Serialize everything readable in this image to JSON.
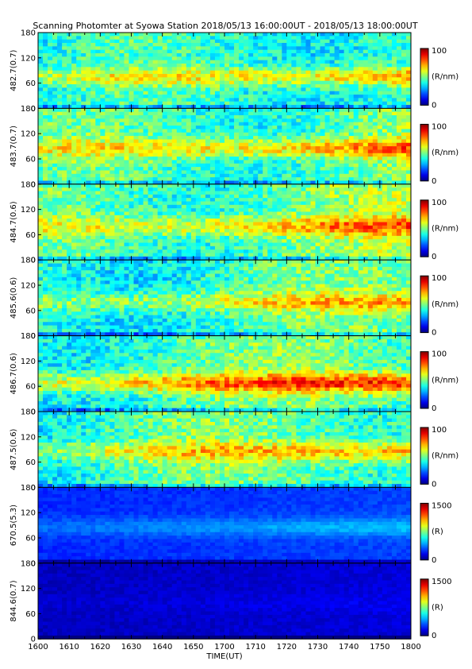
{
  "title": "Scanning Photomter at Syowa Station  2018/05/13 16:00:00UT - 2018/05/13 18:00:00UT",
  "chart_data": {
    "type": "heatmap",
    "title": "Scanning Photomter at Syowa Station  2018/05/13 16:00:00UT - 2018/05/13 18:00:00UT",
    "xlabel": "TIME(UT)",
    "x_ticks": [
      "1600",
      "1610",
      "1620",
      "1630",
      "1640",
      "1650",
      "1700",
      "1710",
      "1720",
      "1730",
      "1740",
      "1750",
      "1800"
    ],
    "y_ticks": [
      "0",
      "60",
      "120",
      "180"
    ],
    "ylim": [
      0,
      180
    ],
    "panels": [
      {
        "ylabel": "482.7(0.7)",
        "cbar_unit": "(R/nm)",
        "cbar_min": "0",
        "cbar_max": "100",
        "level": 0.38,
        "band_center": 75,
        "band_strength": 0.22,
        "scale": "nm"
      },
      {
        "ylabel": "483.7(0.7)",
        "cbar_unit": "(R/nm)",
        "cbar_min": "0",
        "cbar_max": "100",
        "level": 0.42,
        "band_center": 85,
        "band_strength": 0.22,
        "scale": "nm"
      },
      {
        "ylabel": "484.7(0.6)",
        "cbar_unit": "(R/nm)",
        "cbar_min": "0",
        "cbar_max": "100",
        "level": 0.44,
        "band_center": 80,
        "band_strength": 0.2,
        "scale": "nm"
      },
      {
        "ylabel": "485.6(0.6)",
        "cbar_unit": "(R/nm)",
        "cbar_min": "0",
        "cbar_max": "100",
        "level": 0.4,
        "band_center": 80,
        "band_strength": 0.18,
        "scale": "nm"
      },
      {
        "ylabel": "486.7(0.6)",
        "cbar_unit": "(R/nm)",
        "cbar_min": "0",
        "cbar_max": "100",
        "level": 0.42,
        "band_center": 68,
        "band_strength": 0.3,
        "scale": "nm"
      },
      {
        "ylabel": "487.5(0.6)",
        "cbar_unit": "(R/nm)",
        "cbar_min": "0",
        "cbar_max": "100",
        "level": 0.42,
        "band_center": 85,
        "band_strength": 0.2,
        "scale": "nm"
      },
      {
        "ylabel": "670.5(5.3)",
        "cbar_unit": "(R)",
        "cbar_min": "0",
        "cbar_max": "1500",
        "level": 0.16,
        "band_center": 85,
        "band_strength": 0.1,
        "scale": "r"
      },
      {
        "ylabel": "844.6(0.7)",
        "cbar_unit": "(R)",
        "cbar_min": "0",
        "cbar_max": "1500",
        "level": 0.06,
        "band_center": 85,
        "band_strength": 0.02,
        "scale": "r"
      }
    ]
  }
}
